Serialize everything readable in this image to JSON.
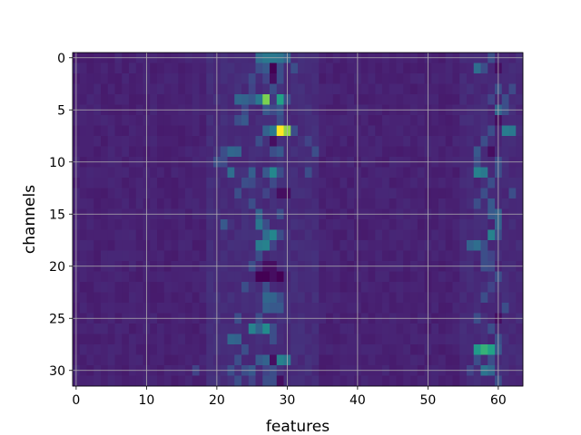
{
  "chart_data": {
    "type": "heatmap",
    "title": "",
    "xlabel": "features",
    "ylabel": "channels",
    "n_cols": 64,
    "n_rows": 32,
    "xlim": [
      -0.5,
      63.5
    ],
    "ylim": [
      31.5,
      -0.5
    ],
    "y_inverted": true,
    "x_ticks": [
      0,
      10,
      20,
      30,
      40,
      50,
      60
    ],
    "y_ticks": [
      0,
      5,
      10,
      15,
      20,
      25,
      30
    ],
    "grid": true,
    "colormap": "viridis",
    "value_range": [
      0,
      1
    ],
    "background_level": 0.12,
    "cells": [
      {
        "r": 0,
        "c": 26,
        "v": 0.45
      },
      {
        "r": 0,
        "c": 27,
        "v": 0.5
      },
      {
        "r": 0,
        "c": 28,
        "v": 0.5
      },
      {
        "r": 0,
        "c": 29,
        "v": 0.48
      },
      {
        "r": 0,
        "c": 30,
        "v": 0.4
      },
      {
        "r": 0,
        "c": 59,
        "v": 0.3
      },
      {
        "r": 1,
        "c": 26,
        "v": 0.3
      },
      {
        "r": 1,
        "c": 27,
        "v": 0.35
      },
      {
        "r": 1,
        "c": 28,
        "v": 0.0
      },
      {
        "r": 1,
        "c": 29,
        "v": 0.3
      },
      {
        "r": 1,
        "c": 31,
        "v": 0.3
      },
      {
        "r": 1,
        "c": 57,
        "v": 0.45
      },
      {
        "r": 1,
        "c": 58,
        "v": 0.3
      },
      {
        "r": 1,
        "c": 60,
        "v": 0.05
      },
      {
        "r": 2,
        "c": 25,
        "v": 0.28
      },
      {
        "r": 2,
        "c": 27,
        "v": 0.25
      },
      {
        "r": 2,
        "c": 28,
        "v": 0.05
      },
      {
        "r": 2,
        "c": 29,
        "v": 0.3
      },
      {
        "r": 3,
        "c": 25,
        "v": 0.25
      },
      {
        "r": 3,
        "c": 28,
        "v": 0.3
      },
      {
        "r": 3,
        "c": 60,
        "v": 0.3
      },
      {
        "r": 3,
        "c": 62,
        "v": 0.28
      },
      {
        "r": 4,
        "c": 23,
        "v": 0.42
      },
      {
        "r": 4,
        "c": 24,
        "v": 0.4
      },
      {
        "r": 4,
        "c": 25,
        "v": 0.35
      },
      {
        "r": 4,
        "c": 26,
        "v": 0.5
      },
      {
        "r": 4,
        "c": 27,
        "v": 0.88
      },
      {
        "r": 4,
        "c": 28,
        "v": 0.2
      },
      {
        "r": 4,
        "c": 29,
        "v": 0.72
      },
      {
        "r": 4,
        "c": 30,
        "v": 0.3
      },
      {
        "r": 4,
        "c": 59,
        "v": 0.25
      },
      {
        "r": 4,
        "c": 61,
        "v": 0.3
      },
      {
        "r": 5,
        "c": 24,
        "v": 0.28
      },
      {
        "r": 5,
        "c": 27,
        "v": 0.35
      },
      {
        "r": 5,
        "c": 28,
        "v": 0.28
      },
      {
        "r": 5,
        "c": 29,
        "v": 0.35
      },
      {
        "r": 5,
        "c": 60,
        "v": 0.42
      },
      {
        "r": 5,
        "c": 61,
        "v": 0.3
      },
      {
        "r": 6,
        "c": 23,
        "v": 0.3
      },
      {
        "r": 6,
        "c": 24,
        "v": 0.35
      },
      {
        "r": 6,
        "c": 29,
        "v": 0.3
      },
      {
        "r": 6,
        "c": 60,
        "v": 0.05
      },
      {
        "r": 7,
        "c": 27,
        "v": 0.4
      },
      {
        "r": 7,
        "c": 28,
        "v": 0.5
      },
      {
        "r": 7,
        "c": 29,
        "v": 1.0
      },
      {
        "r": 7,
        "c": 30,
        "v": 0.9
      },
      {
        "r": 7,
        "c": 31,
        "v": 0.3
      },
      {
        "r": 7,
        "c": 59,
        "v": 0.3
      },
      {
        "r": 7,
        "c": 61,
        "v": 0.52
      },
      {
        "r": 7,
        "c": 62,
        "v": 0.5
      },
      {
        "r": 8,
        "c": 26,
        "v": 0.3
      },
      {
        "r": 8,
        "c": 28,
        "v": 0.05
      },
      {
        "r": 8,
        "c": 33,
        "v": 0.25
      },
      {
        "r": 8,
        "c": 58,
        "v": 0.3
      },
      {
        "r": 9,
        "c": 21,
        "v": 0.3
      },
      {
        "r": 9,
        "c": 22,
        "v": 0.42
      },
      {
        "r": 9,
        "c": 23,
        "v": 0.4
      },
      {
        "r": 9,
        "c": 28,
        "v": 0.3
      },
      {
        "r": 9,
        "c": 29,
        "v": 0.35
      },
      {
        "r": 9,
        "c": 34,
        "v": 0.3
      },
      {
        "r": 9,
        "c": 57,
        "v": 0.35
      },
      {
        "r": 9,
        "c": 59,
        "v": 0.05
      },
      {
        "r": 10,
        "c": 20,
        "v": 0.3
      },
      {
        "r": 10,
        "c": 21,
        "v": 0.28
      },
      {
        "r": 10,
        "c": 57,
        "v": 0.3
      },
      {
        "r": 10,
        "c": 60,
        "v": 0.3
      },
      {
        "r": 11,
        "c": 22,
        "v": 0.45
      },
      {
        "r": 11,
        "c": 25,
        "v": 0.38
      },
      {
        "r": 11,
        "c": 27,
        "v": 0.35
      },
      {
        "r": 11,
        "c": 28,
        "v": 0.58
      },
      {
        "r": 11,
        "c": 29,
        "v": 0.3
      },
      {
        "r": 11,
        "c": 33,
        "v": 0.3
      },
      {
        "r": 11,
        "c": 57,
        "v": 0.55
      },
      {
        "r": 11,
        "c": 58,
        "v": 0.5
      },
      {
        "r": 11,
        "c": 60,
        "v": 0.3
      },
      {
        "r": 12,
        "c": 24,
        "v": 0.3
      },
      {
        "r": 12,
        "c": 25,
        "v": 0.28
      },
      {
        "r": 12,
        "c": 28,
        "v": 0.28
      },
      {
        "r": 12,
        "c": 59,
        "v": 0.3
      },
      {
        "r": 13,
        "c": 23,
        "v": 0.3
      },
      {
        "r": 13,
        "c": 27,
        "v": 0.25
      },
      {
        "r": 13,
        "c": 29,
        "v": 0.05
      },
      {
        "r": 13,
        "c": 30,
        "v": 0.05
      },
      {
        "r": 13,
        "c": 58,
        "v": 0.3
      },
      {
        "r": 13,
        "c": 62,
        "v": 0.3
      },
      {
        "r": 14,
        "c": 25,
        "v": 0.3
      },
      {
        "r": 14,
        "c": 57,
        "v": 0.3
      },
      {
        "r": 14,
        "c": 59,
        "v": 0.35
      },
      {
        "r": 15,
        "c": 26,
        "v": 0.4
      },
      {
        "r": 15,
        "c": 29,
        "v": 0.3
      },
      {
        "r": 15,
        "c": 59,
        "v": 0.35
      },
      {
        "r": 15,
        "c": 60,
        "v": 0.4
      },
      {
        "r": 16,
        "c": 21,
        "v": 0.35
      },
      {
        "r": 16,
        "c": 26,
        "v": 0.5
      },
      {
        "r": 16,
        "c": 27,
        "v": 0.3
      },
      {
        "r": 16,
        "c": 60,
        "v": 0.4
      },
      {
        "r": 17,
        "c": 27,
        "v": 0.45
      },
      {
        "r": 17,
        "c": 28,
        "v": 0.58
      },
      {
        "r": 17,
        "c": 29,
        "v": 0.3
      },
      {
        "r": 17,
        "c": 59,
        "v": 0.55
      },
      {
        "r": 17,
        "c": 60,
        "v": 0.3
      },
      {
        "r": 18,
        "c": 26,
        "v": 0.52
      },
      {
        "r": 18,
        "c": 27,
        "v": 0.55
      },
      {
        "r": 18,
        "c": 28,
        "v": 0.25
      },
      {
        "r": 18,
        "c": 56,
        "v": 0.4
      },
      {
        "r": 18,
        "c": 57,
        "v": 0.45
      },
      {
        "r": 18,
        "c": 58,
        "v": 0.3
      },
      {
        "r": 19,
        "c": 26,
        "v": 0.3
      },
      {
        "r": 19,
        "c": 58,
        "v": 0.3
      },
      {
        "r": 19,
        "c": 59,
        "v": 0.25
      },
      {
        "r": 20,
        "c": 25,
        "v": 0.3
      },
      {
        "r": 20,
        "c": 27,
        "v": 0.05
      },
      {
        "r": 20,
        "c": 28,
        "v": 0.05
      },
      {
        "r": 20,
        "c": 58,
        "v": 0.3
      },
      {
        "r": 20,
        "c": 59,
        "v": 0.28
      },
      {
        "r": 21,
        "c": 26,
        "v": 0.0
      },
      {
        "r": 21,
        "c": 27,
        "v": 0.0
      },
      {
        "r": 21,
        "c": 28,
        "v": 0.05
      },
      {
        "r": 21,
        "c": 29,
        "v": 0.0
      },
      {
        "r": 21,
        "c": 60,
        "v": 0.3
      },
      {
        "r": 22,
        "c": 24,
        "v": 0.3
      },
      {
        "r": 22,
        "c": 27,
        "v": 0.3
      },
      {
        "r": 22,
        "c": 59,
        "v": 0.25
      },
      {
        "r": 23,
        "c": 27,
        "v": 0.42
      },
      {
        "r": 23,
        "c": 28,
        "v": 0.4
      },
      {
        "r": 23,
        "c": 29,
        "v": 0.3
      },
      {
        "r": 23,
        "c": 58,
        "v": 0.3
      },
      {
        "r": 24,
        "c": 27,
        "v": 0.38
      },
      {
        "r": 24,
        "c": 28,
        "v": 0.35
      },
      {
        "r": 24,
        "c": 29,
        "v": 0.35
      },
      {
        "r": 24,
        "c": 61,
        "v": 0.3
      },
      {
        "r": 25,
        "c": 23,
        "v": 0.3
      },
      {
        "r": 25,
        "c": 26,
        "v": 0.3
      },
      {
        "r": 25,
        "c": 57,
        "v": 0.3
      },
      {
        "r": 25,
        "c": 60,
        "v": 0.05
      },
      {
        "r": 26,
        "c": 25,
        "v": 0.55
      },
      {
        "r": 26,
        "c": 26,
        "v": 0.4
      },
      {
        "r": 26,
        "c": 27,
        "v": 0.6
      },
      {
        "r": 26,
        "c": 28,
        "v": 0.3
      },
      {
        "r": 26,
        "c": 59,
        "v": 0.3
      },
      {
        "r": 27,
        "c": 22,
        "v": 0.42
      },
      {
        "r": 27,
        "c": 23,
        "v": 0.4
      },
      {
        "r": 27,
        "c": 28,
        "v": 0.3
      },
      {
        "r": 27,
        "c": 60,
        "v": 0.3
      },
      {
        "r": 28,
        "c": 24,
        "v": 0.3
      },
      {
        "r": 28,
        "c": 57,
        "v": 0.68
      },
      {
        "r": 28,
        "c": 58,
        "v": 0.78
      },
      {
        "r": 28,
        "c": 59,
        "v": 0.72
      },
      {
        "r": 28,
        "c": 60,
        "v": 0.35
      },
      {
        "r": 29,
        "c": 23,
        "v": 0.3
      },
      {
        "r": 29,
        "c": 26,
        "v": 0.35
      },
      {
        "r": 29,
        "c": 27,
        "v": 0.4
      },
      {
        "r": 29,
        "c": 28,
        "v": 0.05
      },
      {
        "r": 29,
        "c": 29,
        "v": 0.55
      },
      {
        "r": 29,
        "c": 30,
        "v": 0.5
      },
      {
        "r": 29,
        "c": 57,
        "v": 0.3
      },
      {
        "r": 29,
        "c": 59,
        "v": 0.3
      },
      {
        "r": 30,
        "c": 17,
        "v": 0.25
      },
      {
        "r": 30,
        "c": 22,
        "v": 0.3
      },
      {
        "r": 30,
        "c": 24,
        "v": 0.3
      },
      {
        "r": 30,
        "c": 25,
        "v": 0.35
      },
      {
        "r": 30,
        "c": 27,
        "v": 0.25
      },
      {
        "r": 30,
        "c": 28,
        "v": 0.3
      },
      {
        "r": 30,
        "c": 56,
        "v": 0.25
      },
      {
        "r": 30,
        "c": 58,
        "v": 0.48
      },
      {
        "r": 30,
        "c": 59,
        "v": 0.42
      },
      {
        "r": 31,
        "c": 23,
        "v": 0.3
      },
      {
        "r": 31,
        "c": 25,
        "v": 0.25
      },
      {
        "r": 31,
        "c": 27,
        "v": 0.3
      },
      {
        "r": 31,
        "c": 28,
        "v": 0.3
      },
      {
        "r": 31,
        "c": 29,
        "v": 0.05
      },
      {
        "r": 31,
        "c": 60,
        "v": 0.3
      }
    ]
  }
}
